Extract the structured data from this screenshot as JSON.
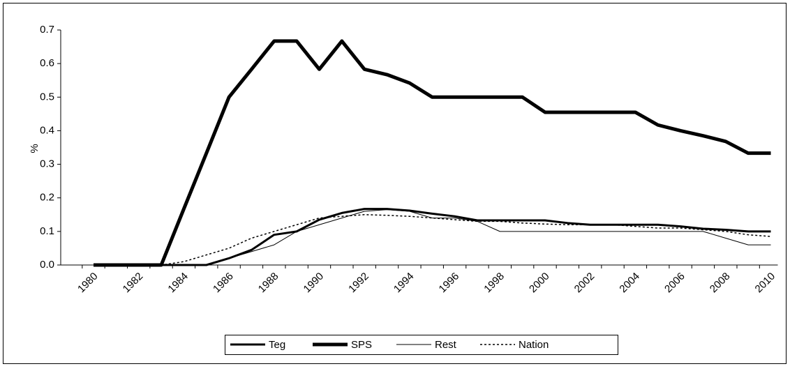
{
  "chart_data": {
    "type": "line",
    "y_label": "%",
    "categories": [
      "1980",
      null,
      "1982",
      null,
      "1984",
      null,
      "1986",
      null,
      "1988",
      null,
      "1990",
      null,
      "1992",
      null,
      "1994",
      null,
      "1996",
      null,
      "1998",
      null,
      "2000",
      null,
      "2002",
      null,
      "2004",
      null,
      "2006",
      null,
      "2008",
      null,
      "2010"
    ],
    "series": [
      {
        "name": "Teg",
        "color": "#000000",
        "line_width": 3,
        "dashed": false,
        "values": [
          0,
          0,
          0,
          0,
          0,
          0,
          0.02,
          0.045,
          0.09,
          0.1,
          0.135,
          0.155,
          0.167,
          0.167,
          0.162,
          0.153,
          0.145,
          0.133,
          0.133,
          0.133,
          0.133,
          0.125,
          0.12,
          0.12,
          0.12,
          0.12,
          0.115,
          0.108,
          0.105,
          0.1,
          0.1
        ]
      },
      {
        "name": "SPS",
        "color": "#000000",
        "line_width": 5,
        "dashed": false,
        "values": [
          0,
          0,
          0,
          0,
          0.167,
          0.333,
          0.5,
          0.583,
          0.667,
          0.667,
          0.583,
          0.667,
          0.583,
          0.567,
          0.542,
          0.5,
          0.5,
          0.5,
          0.5,
          0.5,
          0.455,
          0.455,
          0.455,
          0.455,
          0.455,
          0.417,
          0.4,
          0.385,
          0.368,
          0.333,
          0.333
        ]
      },
      {
        "name": "Rest",
        "color": "#000000",
        "line_width": 1,
        "dashed": false,
        "values": [
          0,
          0,
          0,
          0,
          0,
          0,
          0.02,
          0.04,
          0.06,
          0.1,
          0.12,
          0.14,
          0.16,
          0.165,
          0.16,
          0.14,
          0.14,
          0.13,
          0.1,
          0.1,
          0.1,
          0.1,
          0.1,
          0.1,
          0.1,
          0.1,
          0.1,
          0.1,
          0.08,
          0.06,
          0.06
        ]
      },
      {
        "name": "Nation",
        "color": "#000000",
        "line_width": 1.5,
        "dashed": true,
        "values": [
          0,
          0,
          0,
          0,
          0.01,
          0.03,
          0.05,
          0.08,
          0.1,
          0.12,
          0.14,
          0.145,
          0.15,
          0.148,
          0.145,
          0.14,
          0.135,
          0.13,
          0.13,
          0.125,
          0.122,
          0.12,
          0.12,
          0.12,
          0.115,
          0.11,
          0.11,
          0.105,
          0.1,
          0.09,
          0.085
        ]
      }
    ],
    "ylim": [
      0,
      0.7
    ],
    "yticks": [
      {
        "value": 0,
        "label": "0.0"
      },
      0.1,
      0.2,
      0.3,
      0.4,
      0.5,
      0.6,
      0.7
    ],
    "grid": false,
    "legend": "bottom"
  }
}
